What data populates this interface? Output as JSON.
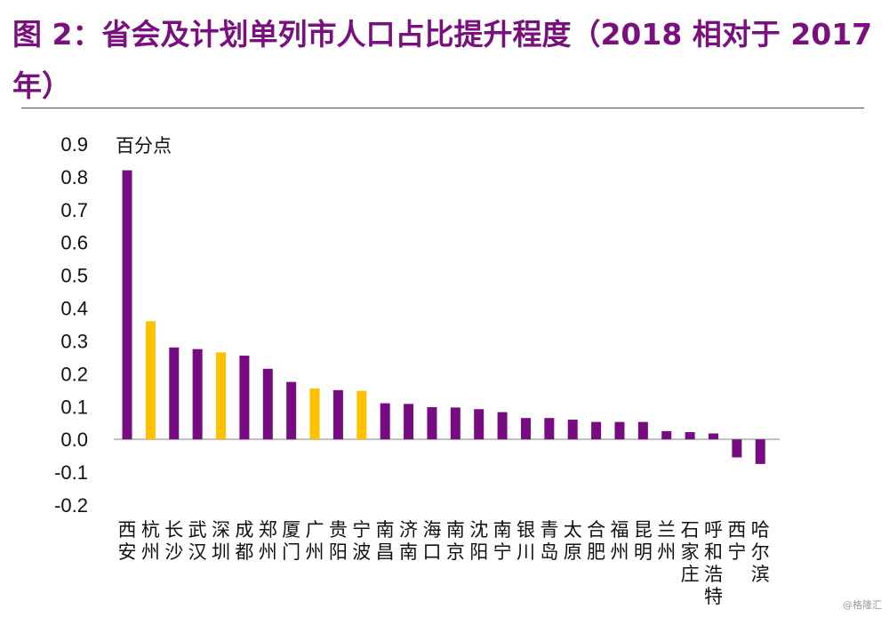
{
  "title": "图 2：省会及计划单列市人口占比提升程度（2018 相对于 2017 年）",
  "watermark": "@格隆汇",
  "colors": {
    "title": "#7a0f7e",
    "purple": "#760b82",
    "gold": "#ffc000"
  },
  "chart_data": {
    "type": "bar",
    "ylabel": "百分点",
    "ylim": [
      -0.2,
      0.9
    ],
    "yticks": [
      "0.9",
      "0.8",
      "0.7",
      "0.6",
      "0.5",
      "0.4",
      "0.3",
      "0.2",
      "0.1",
      "0.0",
      "-0.1",
      "-0.2"
    ],
    "grid": false,
    "categories": [
      "西安",
      "杭州",
      "长沙",
      "武汉",
      "深圳",
      "成都",
      "郑州",
      "厦门",
      "广州",
      "贵阳",
      "宁波",
      "南昌",
      "济南",
      "海口",
      "南京",
      "沈阳",
      "南宁",
      "银川",
      "青岛",
      "太原",
      "合肥",
      "福州",
      "昆明",
      "兰州",
      "石家庄",
      "呼和浩特",
      "西宁",
      "哈尔滨"
    ],
    "values": [
      0.82,
      0.36,
      0.28,
      0.275,
      0.265,
      0.255,
      0.215,
      0.175,
      0.155,
      0.15,
      0.148,
      0.11,
      0.108,
      0.098,
      0.097,
      0.092,
      0.083,
      0.065,
      0.065,
      0.06,
      0.053,
      0.053,
      0.053,
      0.025,
      0.022,
      0.018,
      -0.055,
      -0.075
    ],
    "bar_colors": [
      "purple",
      "gold",
      "purple",
      "purple",
      "gold",
      "purple",
      "purple",
      "purple",
      "gold",
      "purple",
      "gold",
      "purple",
      "purple",
      "purple",
      "purple",
      "purple",
      "purple",
      "purple",
      "purple",
      "purple",
      "purple",
      "purple",
      "purple",
      "purple",
      "purple",
      "purple",
      "purple",
      "purple"
    ]
  }
}
